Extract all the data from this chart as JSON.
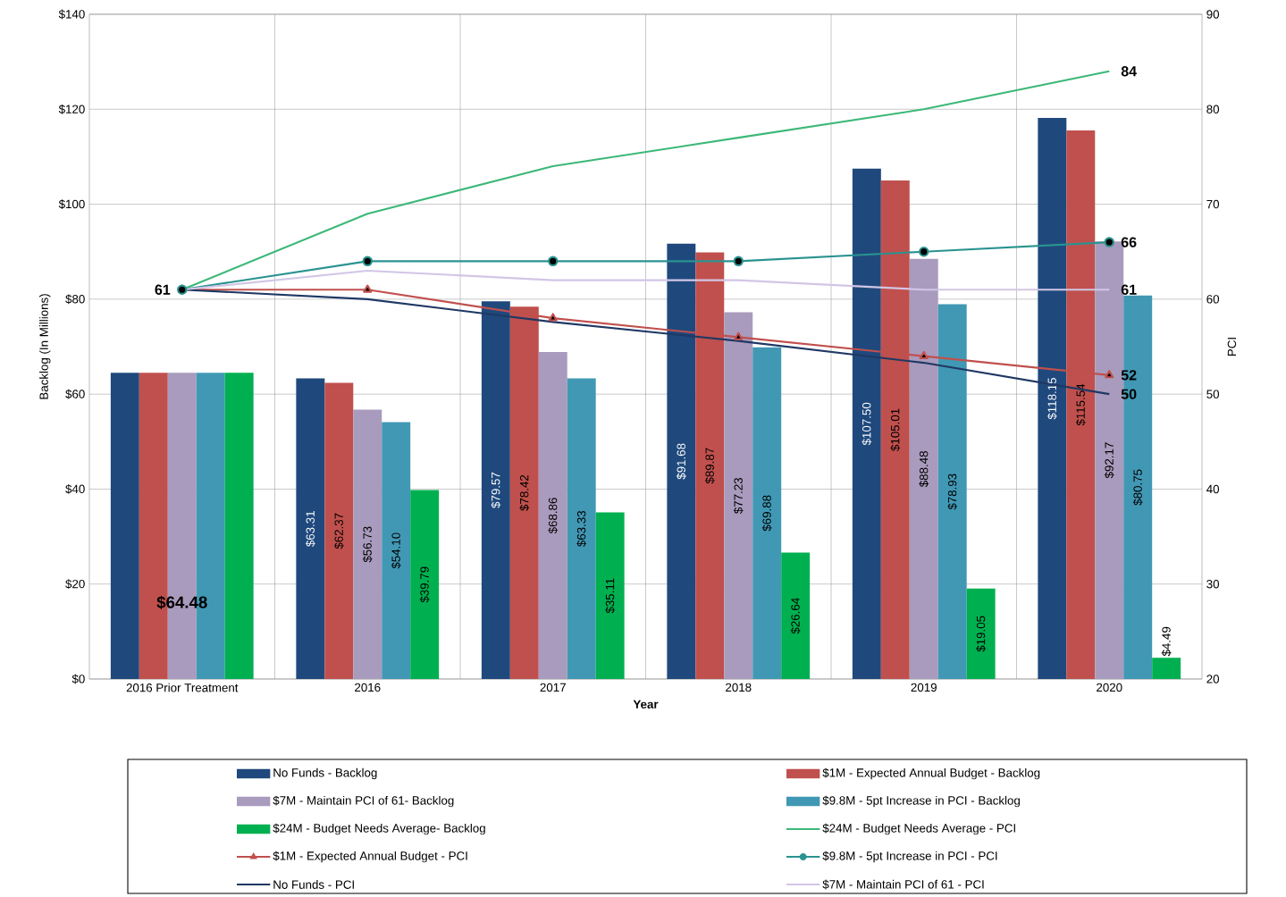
{
  "chart_data": {
    "type": "bar",
    "xlabel": "Year",
    "ylabel": "Backlog (In Millions)",
    "y2label": "PCI",
    "categories": [
      "2016 Prior Treatment",
      "2016",
      "2017",
      "2018",
      "2019",
      "2020"
    ],
    "ylim": [
      0,
      140
    ],
    "yticks": [
      {
        "value": 0,
        "label": "$0"
      },
      {
        "value": 20,
        "label": "$20"
      },
      {
        "value": 40,
        "label": "$40"
      },
      {
        "value": 60,
        "label": "$60"
      },
      {
        "value": 80,
        "label": "$80"
      },
      {
        "value": 100,
        "label": "$100"
      },
      {
        "value": 120,
        "label": "$120"
      },
      {
        "value": 140,
        "label": "$140"
      }
    ],
    "y2lim": [
      20,
      90
    ],
    "y2ticks": [
      20,
      30,
      40,
      50,
      60,
      70,
      80,
      90
    ],
    "grid": true,
    "legend": "bottom",
    "series": [
      {
        "name": "No Funds - Backlog",
        "color": "#1f497d",
        "values": [
          64.5,
          63.31,
          79.57,
          91.68,
          107.5,
          118.15
        ],
        "value_labels": [
          null,
          "$63.31",
          "$79.57",
          "$91.68",
          "$107.50",
          "$118.15"
        ]
      },
      {
        "name": "$1M - Expected Annual Budget - Backlog",
        "color": "#c0504d",
        "values": [
          64.5,
          62.37,
          78.42,
          89.87,
          105.01,
          115.54
        ],
        "value_labels": [
          null,
          "$62.37",
          "$78.42",
          "$89.87",
          "$105.01",
          "$115.54"
        ]
      },
      {
        "name": "$7M - Maintain PCI of 61- Backlog",
        "color": "#a99bbd",
        "values": [
          64.48,
          56.73,
          68.86,
          77.23,
          88.48,
          92.17
        ],
        "value_labels": [
          "$64.48",
          "$56.73",
          "$68.86",
          "$77.23",
          "$88.48",
          "$92.17"
        ]
      },
      {
        "name": "$9.8M - 5pt Increase in PCI - Backlog",
        "color": "#4198b4",
        "values": [
          64.5,
          54.1,
          63.33,
          69.88,
          78.93,
          80.75
        ],
        "value_labels": [
          null,
          "$54.10",
          "$63.33",
          "$69.88",
          "$78.93",
          "$80.75"
        ]
      },
      {
        "name": "$24M - Budget Needs Average- Backlog",
        "color": "#00b050",
        "values": [
          64.5,
          39.79,
          35.11,
          26.64,
          19.05,
          4.49
        ],
        "value_labels": [
          null,
          "$39.79",
          "$35.11",
          "$26.64",
          "$19.05",
          "$4.49"
        ]
      },
      {
        "name": "$24M - Budget Needs Average - PCI",
        "type": "line",
        "axis": "y2",
        "color": "#3cb878",
        "marker": "none",
        "line_style": "solid",
        "values": [
          61,
          69,
          74,
          77,
          80,
          84
        ],
        "value_labels": [
          null,
          null,
          null,
          null,
          null,
          "84"
        ]
      },
      {
        "name": "$1M - Expected Annual Budget - PCI",
        "type": "line",
        "axis": "y2",
        "color": "#c0504d",
        "marker": "triangle",
        "line_style": "solid",
        "values": [
          61,
          61,
          58,
          56,
          54,
          52
        ],
        "value_labels": [
          null,
          null,
          null,
          null,
          null,
          "52"
        ]
      },
      {
        "name": "$9.8M - 5pt Increase in PCI - PCI",
        "type": "line",
        "axis": "y2",
        "color": "#2a9390",
        "marker": "circle",
        "line_style": "solid",
        "values": [
          61,
          64,
          64,
          64,
          65,
          66
        ],
        "value_labels": [
          "61",
          null,
          null,
          null,
          null,
          "66"
        ]
      },
      {
        "name": "No Funds - PCI",
        "type": "line",
        "axis": "y2",
        "color": "#1f3864",
        "marker": "none",
        "line_style": "solid",
        "values": [
          61,
          60,
          57.6,
          55.6,
          53.3,
          50
        ],
        "value_labels": [
          null,
          null,
          null,
          null,
          null,
          "50"
        ]
      },
      {
        "name": "$7M - Maintain PCI of 61 - PCI",
        "type": "line",
        "axis": "y2",
        "color": "#d2c6e6",
        "marker": "none",
        "line_style": "solid",
        "values": [
          61,
          63,
          62,
          62,
          61,
          61
        ],
        "value_labels": [
          null,
          null,
          null,
          null,
          null,
          "61"
        ]
      }
    ]
  }
}
